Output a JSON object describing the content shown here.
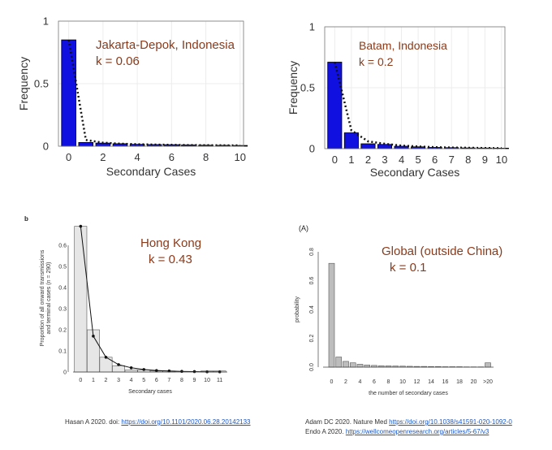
{
  "chart_data": [
    {
      "type": "bar",
      "annotation": "Jakarta-Depok, Indonesia",
      "annotation_k": "k = 0.06",
      "xlabel": "Secondary Cases",
      "ylabel": "Frequency",
      "xlim": [
        -0.6,
        10.2
      ],
      "ylim": [
        0,
        1
      ],
      "x": [
        0,
        1,
        2,
        3,
        4,
        5,
        6,
        7,
        8,
        9,
        10
      ],
      "values": [
        0.85,
        0.03,
        0.025,
        0.02,
        0.015,
        0.013,
        0.012,
        0.01,
        0.008,
        0.007,
        0.006
      ],
      "fit": [
        0.85,
        0.05,
        0.028,
        0.02,
        0.016,
        0.013,
        0.011,
        0.009,
        0.008,
        0.007,
        0.006
      ],
      "xticks": [
        "0",
        "2",
        "4",
        "6",
        "8",
        "10"
      ],
      "xtick_values": [
        0,
        2,
        4,
        6,
        8,
        10
      ],
      "yticks": [
        "0",
        "0.5",
        "1"
      ],
      "ytick_values": [
        0,
        0.5,
        1
      ],
      "grid": true,
      "bar_color": "#1010e0"
    },
    {
      "type": "bar",
      "annotation": "Batam, Indonesia",
      "annotation_k": "k = 0.2",
      "xlabel": "Secondary Cases",
      "ylabel": "Frequency",
      "xlim": [
        -0.6,
        10.2
      ],
      "ylim": [
        0,
        1
      ],
      "x": [
        0,
        1,
        2,
        3,
        4,
        5,
        6,
        7,
        8,
        9,
        10
      ],
      "values": [
        0.71,
        0.13,
        0.04,
        0.035,
        0.02,
        0.015,
        0.01,
        0.008,
        0.006,
        0.005,
        0.004
      ],
      "fit": [
        0.71,
        0.15,
        0.06,
        0.04,
        0.025,
        0.018,
        0.012,
        0.009,
        0.007,
        0.005,
        0.004
      ],
      "xticks": [
        "0",
        "1",
        "2",
        "3",
        "4",
        "5",
        "6",
        "7",
        "8",
        "9",
        "10"
      ],
      "xtick_values": [
        0,
        1,
        2,
        3,
        4,
        5,
        6,
        7,
        8,
        9,
        10
      ],
      "yticks": [
        "0",
        "0.5",
        "1"
      ],
      "ytick_values": [
        0,
        0.5,
        1
      ],
      "grid": true,
      "bar_color": "#1010e0"
    },
    {
      "type": "bar",
      "panel_label": "b",
      "annotation": "Hong Kong",
      "annotation_k": "k = 0.43",
      "xlabel": "Secondary cases",
      "ylabel": "Proportion of all onward transmissions and terminal cases (n = 290)",
      "xlim": [
        -0.6,
        11.6
      ],
      "ylim": [
        0,
        0.7
      ],
      "x": [
        0,
        1,
        2,
        3,
        4,
        5,
        6,
        7,
        8,
        9,
        10,
        11
      ],
      "values": [
        0.69,
        0.2,
        0.07,
        0.03,
        0.01,
        0.01,
        0.005,
        0.005,
        0.0,
        0.0,
        0.005,
        0.005
      ],
      "fit": [
        0.69,
        0.17,
        0.07,
        0.035,
        0.02,
        0.012,
        0.007,
        0.005,
        0.003,
        0.002,
        0.001,
        0.001
      ],
      "xticks": [
        "0",
        "1",
        "2",
        "3",
        "4",
        "5",
        "6",
        "7",
        "8",
        "9",
        "10",
        "11"
      ],
      "xtick_values": [
        0,
        1,
        2,
        3,
        4,
        5,
        6,
        7,
        8,
        9,
        10,
        11
      ],
      "yticks": [
        "0",
        "0.1",
        "0.2",
        "0.3",
        "0.4",
        "0.5",
        "0.6"
      ],
      "ytick_values": [
        0,
        0.1,
        0.2,
        0.3,
        0.4,
        0.5,
        0.6
      ],
      "grid": false,
      "bar_color": "#e6e6e6"
    },
    {
      "type": "bar",
      "panel_label": "(A)",
      "annotation": "Global (outside China)",
      "annotation_k": "k = 0.1",
      "xlabel": "the number of secondary cases",
      "ylabel": "probability",
      "xlim": [
        -1.2,
        22.8
      ],
      "ylim": [
        0,
        0.8
      ],
      "x": [
        0,
        1,
        2,
        3,
        4,
        5,
        6,
        7,
        8,
        9,
        10,
        11,
        12,
        13,
        14,
        15,
        16,
        17,
        18,
        19,
        20,
        21,
        22
      ],
      "values": [
        0.72,
        0.07,
        0.04,
        0.03,
        0.02,
        0.015,
        0.012,
        0.01,
        0.009,
        0.008,
        0.007,
        0.006,
        0.005,
        0.005,
        0.004,
        0.004,
        0.003,
        0.003,
        0.003,
        0.002,
        0.002,
        0.002,
        0.03
      ],
      "xticks": [
        "0",
        "2",
        "4",
        "6",
        "8",
        "10",
        "12",
        "14",
        "16",
        "18",
        "20",
        ">20"
      ],
      "xtick_values": [
        0,
        2,
        4,
        6,
        8,
        10,
        12,
        14,
        16,
        18,
        20,
        22
      ],
      "yticks": [
        "0.0",
        "0.2",
        "0.4",
        "0.6",
        "0.8"
      ],
      "ytick_values": [
        0,
        0.2,
        0.4,
        0.6,
        0.8
      ],
      "grid": false,
      "bar_color": "#bdbdbd"
    }
  ],
  "citations": {
    "left_prefix": "Hasan A 2020. doi:",
    "left_link": "https://doi.org/10.1101/2020.06.28.20142133",
    "right1_prefix": "Adam DC 2020. Nature Med",
    "right1_link": "https://doi.org/10.1038/s41591-020-1092-0",
    "right2_prefix": "Endo A 2020.",
    "right2_link": "https://wellcomeopenresearch.org/articles/5-67/v3"
  },
  "colors": {
    "annotation": "#8b3a1a",
    "link": "#1a56c4"
  }
}
